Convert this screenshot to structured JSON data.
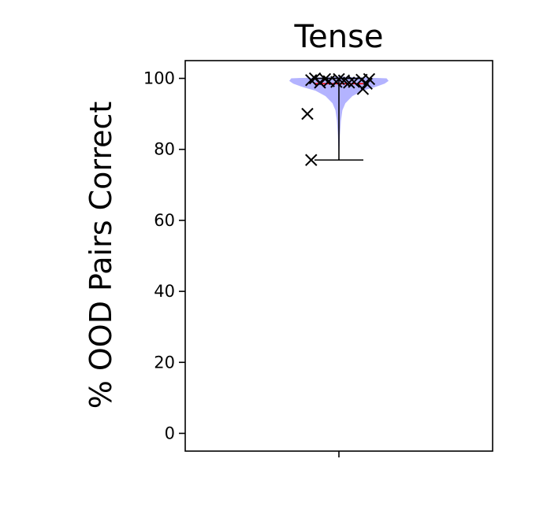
{
  "chart_data": {
    "type": "violin",
    "title": "Tense",
    "xlabel": "",
    "ylabel": "% OOD Pairs Correct",
    "ylim": [
      -5,
      105
    ],
    "yticks": [
      0,
      20,
      40,
      60,
      80,
      100
    ],
    "ytick_labels": [
      "0",
      "20",
      "40",
      "60",
      "80",
      "100"
    ],
    "x_ticks": [
      1
    ],
    "x_tick_labels": [
      ""
    ],
    "grid": false,
    "violin": {
      "min": 77,
      "max": 100,
      "median": 98.5,
      "fill_color": "#b3b3ff",
      "line_color": "#000000",
      "median_color": "#ff0000",
      "density": [
        {
          "y": 77,
          "w": 0.0
        },
        {
          "y": 80,
          "w": 0.01
        },
        {
          "y": 84,
          "w": 0.02
        },
        {
          "y": 88,
          "w": 0.04
        },
        {
          "y": 91,
          "w": 0.07
        },
        {
          "y": 93,
          "w": 0.13
        },
        {
          "y": 95,
          "w": 0.27
        },
        {
          "y": 96.5,
          "w": 0.47
        },
        {
          "y": 97.5,
          "w": 0.72
        },
        {
          "y": 98.5,
          "w": 0.92
        },
        {
          "y": 99.3,
          "w": 1.0
        },
        {
          "y": 100,
          "w": 0.96
        },
        {
          "y": 100.5,
          "w": 0.0
        }
      ]
    },
    "points": [
      {
        "x": -0.22,
        "y": 77
      },
      {
        "x": -0.25,
        "y": 90
      },
      {
        "x": 0.19,
        "y": 97
      },
      {
        "x": 0.22,
        "y": 98.5
      },
      {
        "x": -0.22,
        "y": 99.5
      },
      {
        "x": -0.15,
        "y": 98.8
      },
      {
        "x": -0.08,
        "y": 99.2
      },
      {
        "x": -0.02,
        "y": 99.0
      },
      {
        "x": 0.04,
        "y": 99.4
      },
      {
        "x": 0.12,
        "y": 99.0
      },
      {
        "x": 0.18,
        "y": 99.6
      },
      {
        "x": 0.24,
        "y": 99.8
      },
      {
        "x": -0.19,
        "y": 100
      },
      {
        "x": -0.11,
        "y": 99.8
      },
      {
        "x": 0.08,
        "y": 98.8
      },
      {
        "x": 0.0,
        "y": 99.8
      }
    ],
    "marker": "x",
    "marker_color": "#000000"
  }
}
